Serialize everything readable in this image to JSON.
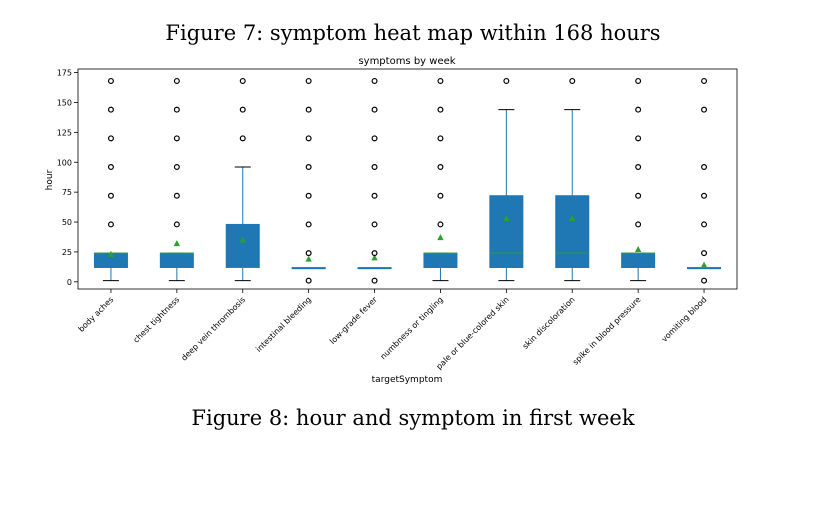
{
  "captions": {
    "top": "Figure 7: symptom heat map within 168 hours",
    "bottom": "Figure 8: hour and symptom in first week"
  },
  "chart_data": {
    "type": "box",
    "title": "symptoms by week",
    "xlabel": "targetSymptom",
    "ylabel": "hour",
    "ylim": [
      -6,
      178
    ],
    "yticks": [
      0,
      25,
      50,
      75,
      100,
      125,
      150,
      175
    ],
    "grid": false,
    "colors": {
      "box": "#1f77b4",
      "median": "#2ca02c",
      "mean": "#2ca02c",
      "whisker": "#1f77b4",
      "outlier": "#000000"
    },
    "categories": [
      "body aches",
      "chest tightness",
      "deep vein thrombosis",
      "intestinal bleeding",
      "low-grade fever",
      "numbness or tingling",
      "pale or blue-colored skin",
      "skin discoloration",
      "spike in blood pressure",
      "vomiting blood"
    ],
    "boxes": [
      {
        "whislo": 1,
        "q1": 12,
        "med": 24,
        "q3": 24,
        "whishi": 24,
        "mean": 23,
        "fliers": [
          48,
          72,
          96,
          120,
          144,
          168
        ]
      },
      {
        "whislo": 1,
        "q1": 12,
        "med": 24,
        "q3": 24,
        "whishi": 24,
        "mean": 32,
        "fliers": [
          48,
          72,
          96,
          120,
          144,
          168
        ]
      },
      {
        "whislo": 1,
        "q1": 12,
        "med": 12,
        "q3": 48,
        "whishi": 96,
        "mean": 35,
        "fliers": [
          120,
          144,
          168
        ]
      },
      {
        "whislo": 12,
        "q1": 12,
        "med": 12,
        "q3": 12,
        "whishi": 12,
        "mean": 19,
        "fliers": [
          1,
          24,
          48,
          72,
          96,
          120,
          144,
          168
        ]
      },
      {
        "whislo": 12,
        "q1": 12,
        "med": 12,
        "q3": 12,
        "whishi": 12,
        "mean": 20,
        "fliers": [
          1,
          24,
          48,
          72,
          96,
          120,
          144,
          168
        ]
      },
      {
        "whislo": 1,
        "q1": 12,
        "med": 24,
        "q3": 24,
        "whishi": 24,
        "mean": 37,
        "fliers": [
          48,
          72,
          96,
          120,
          144,
          168
        ]
      },
      {
        "whislo": 1,
        "q1": 12,
        "med": 24,
        "q3": 72,
        "whishi": 144,
        "mean": 53,
        "fliers": [
          168
        ]
      },
      {
        "whislo": 1,
        "q1": 12,
        "med": 24,
        "q3": 72,
        "whishi": 144,
        "mean": 53,
        "fliers": [
          168
        ]
      },
      {
        "whislo": 1,
        "q1": 12,
        "med": 24,
        "q3": 24,
        "whishi": 24,
        "mean": 27,
        "fliers": [
          48,
          72,
          96,
          120,
          144,
          168
        ]
      },
      {
        "whislo": 12,
        "q1": 12,
        "med": 12,
        "q3": 12,
        "whishi": 12,
        "mean": 14,
        "fliers": [
          1,
          24,
          48,
          72,
          96,
          144,
          168
        ]
      }
    ]
  }
}
